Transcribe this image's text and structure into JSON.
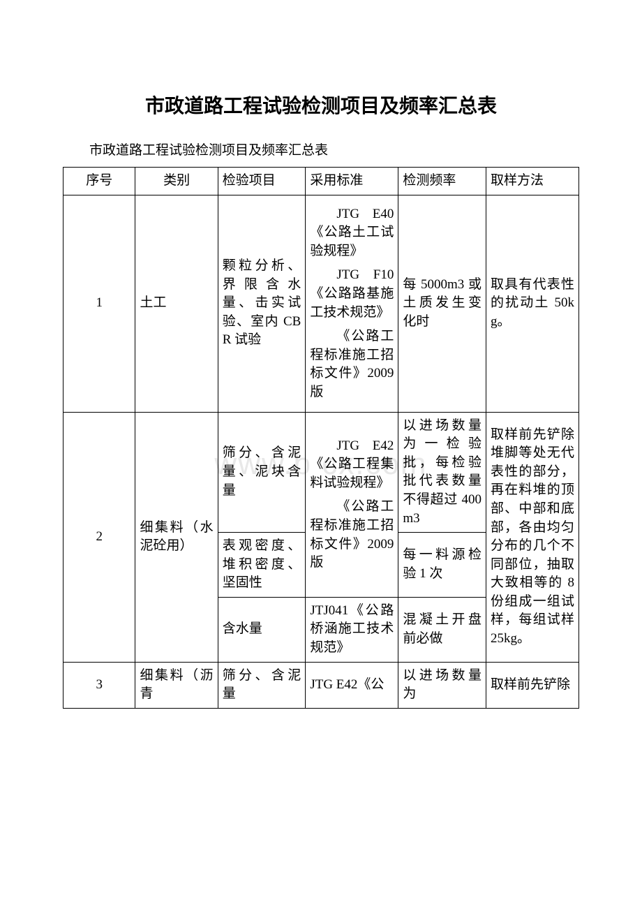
{
  "title": "市政道路工程试验检测项目及频率汇总表",
  "subtitle": "市政道路工程试验检测项目及频率汇总表",
  "watermark": "www.b    cx.com",
  "headers": {
    "seq": "序号",
    "category": "类别",
    "test_item": "检验项目",
    "standard": "采用标准",
    "frequency": "检测频率",
    "sampling": "取样方法"
  },
  "rows": {
    "r1": {
      "seq": "1",
      "category": "土工",
      "test_item": "颗粒分析、界限含水量、击实试验、室内 CBR 试验",
      "std_a": "JTG E40《公路土工试验规程》",
      "std_b": "JTG F10《公路路基施工技术规范》",
      "std_c": "《公路工程标准施工招标文件》2009 版",
      "frequency": "每 5000m3 或土质发生变化时",
      "sampling": "取具有代表性的扰动土 50kg。"
    },
    "r2": {
      "seq": "2",
      "category": "细集料（水泥砼用）",
      "item_a": "筛分、含泥量、泥块含量",
      "item_b": "表观密度、堆积密度、坚固性",
      "item_c": "含水量",
      "std_a": "JTG E42《公路工程集料试验规程》",
      "std_b": "《公路工程标准施工招标文件》2009 版",
      "std_c": "JTJ041《公路桥涵施工技术规范》",
      "freq_a": "以进场数量为一检验批，每检验批代表数量不得超过 400m3",
      "freq_b": "每一料源检验 1 次",
      "freq_c": "混凝土开盘前必做",
      "sampling": "取样前先铲除堆脚等处无代表性的部分，再在料堆的顶部、中部和底部，各由均匀分布的几个不同部位，抽取大致相等的 8 份组成一组试样，每组试样 25kg。"
    },
    "r3": {
      "seq": "3",
      "category": "细集料（沥青",
      "test_item": "筛分、含泥量",
      "standard": "JTG E42《公",
      "frequency": "以进场数量为",
      "sampling": "取样前先铲除"
    }
  }
}
